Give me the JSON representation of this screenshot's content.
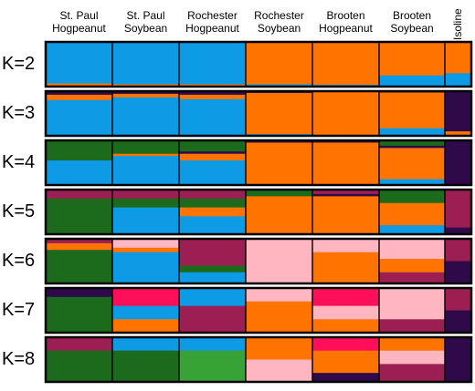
{
  "chart_data": {
    "type": "structure_barplot",
    "title": "",
    "populations": [
      {
        "line1": "St. Paul",
        "line2": "Hogpeanut"
      },
      {
        "line1": "St. Paul",
        "line2": "Soybean"
      },
      {
        "line1": "Rochester",
        "line2": "Hogpeanut"
      },
      {
        "line1": "Rochester",
        "line2": "Soybean"
      },
      {
        "line1": "Brooten",
        "line2": "Hogpeanut"
      },
      {
        "line1": "Brooten",
        "line2": "Soybean"
      },
      {
        "line1": "Isoline",
        "line2": ""
      }
    ],
    "cluster_colors": [
      "#0d9be6",
      "#ff7300",
      "#2f0a4a",
      "#1c6b1c",
      "#9b1f52",
      "#ffb6c1",
      "#ff0f5a",
      "#37a337"
    ],
    "k_rows": [
      {
        "label": "K=2",
        "pops": [
          [
            [
              0,
              0.93
            ],
            [
              1,
              0.07
            ]
          ],
          [
            [
              0,
              0.95
            ],
            [
              1,
              0.05
            ]
          ],
          [
            [
              0,
              0.95
            ],
            [
              1,
              0.05
            ]
          ],
          [
            [
              1,
              0.95
            ],
            [
              0,
              0.05
            ]
          ],
          [
            [
              1,
              0.96
            ],
            [
              0,
              0.04
            ]
          ],
          [
            [
              1,
              0.75
            ],
            [
              0,
              0.25
            ]
          ],
          [
            [
              1,
              0.7
            ],
            [
              0,
              0.3
            ]
          ]
        ]
      },
      {
        "label": "K=3",
        "pops": [
          [
            [
              2,
              0.08
            ],
            [
              1,
              0.12
            ],
            [
              0,
              0.8
            ]
          ],
          [
            [
              2,
              0.06
            ],
            [
              1,
              0.08
            ],
            [
              0,
              0.86
            ]
          ],
          [
            [
              2,
              0.08
            ],
            [
              1,
              0.1
            ],
            [
              0,
              0.82
            ]
          ],
          [
            [
              2,
              0.04
            ],
            [
              1,
              0.92
            ],
            [
              0,
              0.04
            ]
          ],
          [
            [
              2,
              0.02
            ],
            [
              1,
              0.96
            ],
            [
              0,
              0.02
            ]
          ],
          [
            [
              2,
              0.03
            ],
            [
              1,
              0.8
            ],
            [
              0,
              0.17
            ]
          ],
          [
            [
              2,
              0.9
            ],
            [
              1,
              0.1
            ]
          ]
        ]
      },
      {
        "label": "K=4",
        "pops": [
          [
            [
              3,
              0.45
            ],
            [
              0,
              0.55
            ]
          ],
          [
            [
              3,
              0.3
            ],
            [
              1,
              0.05
            ],
            [
              0,
              0.65
            ]
          ],
          [
            [
              3,
              0.25
            ],
            [
              2,
              0.05
            ],
            [
              1,
              0.15
            ],
            [
              0,
              0.55
            ]
          ],
          [
            [
              2,
              0.05
            ],
            [
              1,
              0.93
            ],
            [
              0,
              0.02
            ]
          ],
          [
            [
              2,
              0.05
            ],
            [
              1,
              0.93
            ],
            [
              0,
              0.02
            ]
          ],
          [
            [
              3,
              0.12
            ],
            [
              2,
              0.05
            ],
            [
              1,
              0.7
            ],
            [
              0,
              0.13
            ]
          ],
          [
            [
              2,
              1.0
            ]
          ]
        ]
      },
      {
        "label": "K=5",
        "pops": [
          [
            [
              4,
              0.2
            ],
            [
              3,
              0.8
            ]
          ],
          [
            [
              4,
              0.2
            ],
            [
              3,
              0.2
            ],
            [
              0,
              0.6
            ]
          ],
          [
            [
              4,
              0.2
            ],
            [
              3,
              0.2
            ],
            [
              1,
              0.2
            ],
            [
              0,
              0.4
            ]
          ],
          [
            [
              3,
              0.15
            ],
            [
              1,
              0.85
            ]
          ],
          [
            [
              4,
              0.1
            ],
            [
              2,
              0.05
            ],
            [
              1,
              0.85
            ]
          ],
          [
            [
              3,
              0.3
            ],
            [
              1,
              0.5
            ],
            [
              0,
              0.2
            ]
          ],
          [
            [
              4,
              0.85
            ],
            [
              2,
              0.15
            ]
          ]
        ]
      },
      {
        "label": "K=6",
        "pops": [
          [
            [
              4,
              0.1
            ],
            [
              1,
              0.15
            ],
            [
              3,
              0.75
            ]
          ],
          [
            [
              5,
              0.2
            ],
            [
              1,
              0.1
            ],
            [
              0,
              0.7
            ]
          ],
          [
            [
              4,
              0.6
            ],
            [
              3,
              0.15
            ],
            [
              0,
              0.25
            ]
          ],
          [
            [
              5,
              1.0
            ]
          ],
          [
            [
              5,
              0.3
            ],
            [
              1,
              0.7
            ]
          ],
          [
            [
              5,
              0.45
            ],
            [
              1,
              0.3
            ],
            [
              4,
              0.25
            ]
          ],
          [
            [
              4,
              0.5
            ],
            [
              2,
              0.5
            ]
          ]
        ]
      },
      {
        "label": "K=7",
        "pops": [
          [
            [
              2,
              0.2
            ],
            [
              3,
              0.8
            ]
          ],
          [
            [
              6,
              0.4
            ],
            [
              0,
              0.3
            ],
            [
              1,
              0.3
            ]
          ],
          [
            [
              0,
              0.4
            ],
            [
              4,
              0.6
            ]
          ],
          [
            [
              5,
              0.3
            ],
            [
              1,
              0.7
            ]
          ],
          [
            [
              6,
              0.4
            ],
            [
              5,
              0.3
            ],
            [
              1,
              0.3
            ]
          ],
          [
            [
              5,
              0.7
            ],
            [
              4,
              0.3
            ]
          ],
          [
            [
              4,
              0.5
            ],
            [
              2,
              0.5
            ]
          ]
        ]
      },
      {
        "label": "K=8",
        "pops": [
          [
            [
              4,
              0.3
            ],
            [
              3,
              0.7
            ]
          ],
          [
            [
              0,
              0.3
            ],
            [
              3,
              0.7
            ]
          ],
          [
            [
              0,
              0.3
            ],
            [
              7,
              0.7
            ]
          ],
          [
            [
              1,
              0.5
            ],
            [
              5,
              0.5
            ]
          ],
          [
            [
              6,
              0.3
            ],
            [
              1,
              0.5
            ],
            [
              2,
              0.2
            ]
          ],
          [
            [
              1,
              0.3
            ],
            [
              5,
              0.3
            ],
            [
              4,
              0.4
            ]
          ],
          [
            [
              2,
              1.0
            ]
          ]
        ]
      }
    ]
  }
}
